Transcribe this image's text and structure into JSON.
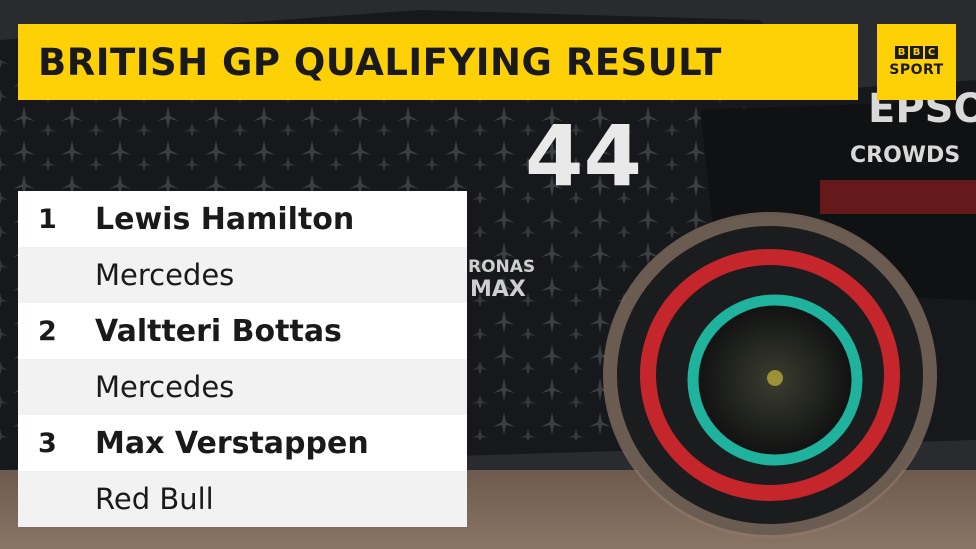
{
  "graphic": {
    "title": "BRITISH GP QUALIFYING RESULT",
    "logo": {
      "blocks": [
        "B",
        "B",
        "C"
      ],
      "word": "SPORT"
    }
  },
  "background": {
    "car_number": "44",
    "sponsors": [
      "EPSO",
      "CROWDS",
      "RONAS",
      "MAX"
    ]
  },
  "results": [
    {
      "position": "1",
      "driver": "Lewis Hamilton",
      "team": "Mercedes"
    },
    {
      "position": "2",
      "driver": "Valtteri Bottas",
      "team": "Mercedes"
    },
    {
      "position": "3",
      "driver": "Max Verstappen",
      "team": "Red Bull"
    }
  ],
  "colors": {
    "bbc_yellow": "#fed106",
    "car_body": "#16181b",
    "tyre_red": "#d8282d",
    "rim_teal": "#1fb39e"
  }
}
